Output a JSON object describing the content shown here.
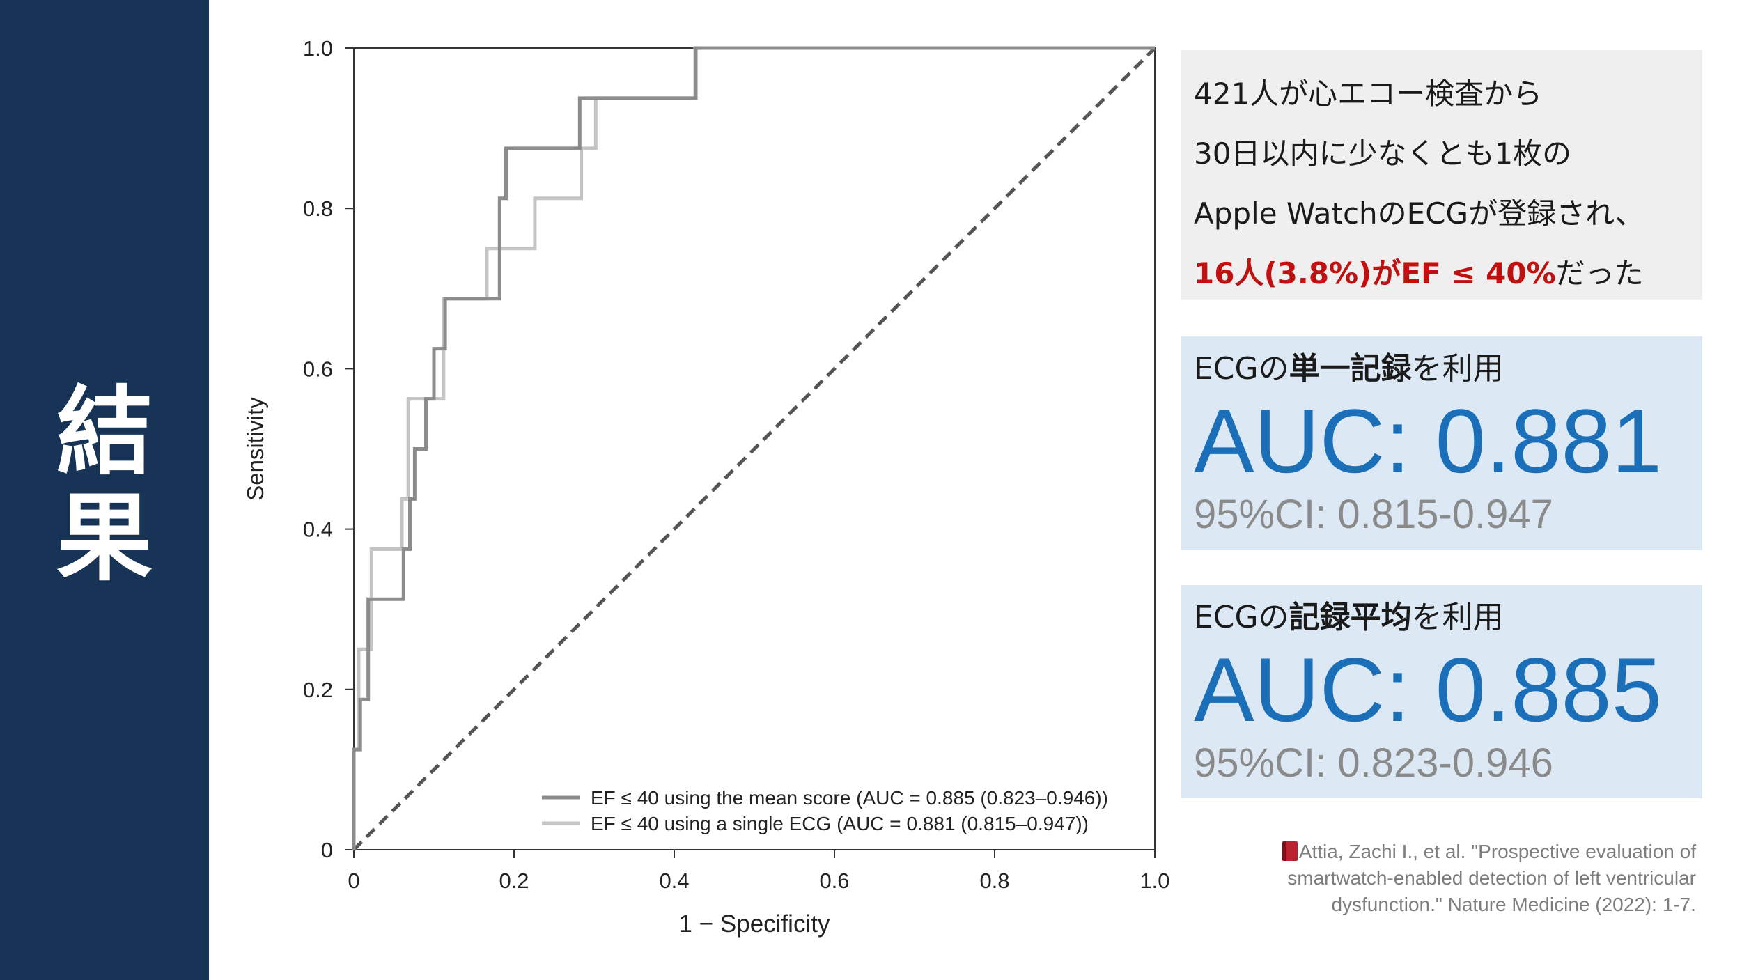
{
  "sidebar": {
    "title_line1": "結",
    "title_line2": "果"
  },
  "summary": {
    "line1": "421人が心エコー検査から",
    "line2": "30日以内に少なくとも1枚の",
    "line3": "Apple WatchのECGが登録され、",
    "line4_highlight": "16人(3.8%)がEF ≤ 40%",
    "line4_rest": "だった"
  },
  "auc_single": {
    "head_prefix": "ECGの",
    "head_bold": "単一記録",
    "head_suffix": "を利用",
    "value": "AUC: 0.881",
    "ci": "95%CI: 0.815-0.947"
  },
  "auc_mean": {
    "head_prefix": "ECGの",
    "head_bold": "記録平均",
    "head_suffix": "を利用",
    "value": "AUC: 0.885",
    "ci": "95%CI: 0.823-0.946"
  },
  "citation": {
    "icon": "book-icon",
    "text": "Attia, Zachi I., et al. \"Prospective evaluation of smartwatch-enabled detection of left ventricular dysfunction.\" Nature Medicine (2022): 1-7."
  },
  "chart_data": {
    "type": "line",
    "title": "",
    "xlabel": "1 − Specificity",
    "ylabel": "Sensitivity",
    "xlim": [
      0,
      1
    ],
    "ylim": [
      0,
      1
    ],
    "xticks": [
      "0",
      "0.2",
      "0.4",
      "0.6",
      "0.8",
      "1.0"
    ],
    "yticks": [
      "0",
      "0.2",
      "0.4",
      "0.6",
      "0.8",
      "1.0"
    ],
    "grid": false,
    "legend_position": "bottom-right",
    "reference_line": {
      "name": "chance",
      "points": [
        [
          0,
          0
        ],
        [
          1,
          1
        ]
      ],
      "style": "dashed",
      "color": "#555555"
    },
    "series": [
      {
        "name": "EF ≤ 40 using the mean score (AUC = 0.885 (0.823–0.946))",
        "color": "#8c8c8c",
        "points": [
          [
            0,
            0
          ],
          [
            0,
            0.125
          ],
          [
            0.008,
            0.125
          ],
          [
            0.008,
            0.1875
          ],
          [
            0.018,
            0.1875
          ],
          [
            0.018,
            0.3125
          ],
          [
            0.062,
            0.3125
          ],
          [
            0.062,
            0.375
          ],
          [
            0.07,
            0.375
          ],
          [
            0.07,
            0.4375
          ],
          [
            0.076,
            0.4375
          ],
          [
            0.076,
            0.5
          ],
          [
            0.09,
            0.5
          ],
          [
            0.09,
            0.5625
          ],
          [
            0.1,
            0.5625
          ],
          [
            0.1,
            0.625
          ],
          [
            0.114,
            0.625
          ],
          [
            0.114,
            0.6875
          ],
          [
            0.182,
            0.6875
          ],
          [
            0.182,
            0.8125
          ],
          [
            0.19,
            0.8125
          ],
          [
            0.19,
            0.875
          ],
          [
            0.282,
            0.875
          ],
          [
            0.282,
            0.9375
          ],
          [
            0.427,
            0.9375
          ],
          [
            0.427,
            1.0
          ],
          [
            1.0,
            1.0
          ]
        ]
      },
      {
        "name": "EF ≤ 40 using a single ECG (AUC = 0.881 (0.815–0.947))",
        "color": "#c4c4c4",
        "points": [
          [
            0,
            0
          ],
          [
            0,
            0.125
          ],
          [
            0.006,
            0.125
          ],
          [
            0.006,
            0.25
          ],
          [
            0.022,
            0.25
          ],
          [
            0.022,
            0.375
          ],
          [
            0.06,
            0.375
          ],
          [
            0.06,
            0.4375
          ],
          [
            0.068,
            0.4375
          ],
          [
            0.068,
            0.5625
          ],
          [
            0.112,
            0.5625
          ],
          [
            0.112,
            0.6875
          ],
          [
            0.166,
            0.6875
          ],
          [
            0.166,
            0.75
          ],
          [
            0.226,
            0.75
          ],
          [
            0.226,
            0.8125
          ],
          [
            0.284,
            0.8125
          ],
          [
            0.284,
            0.875
          ],
          [
            0.302,
            0.875
          ],
          [
            0.302,
            0.9375
          ],
          [
            0.426,
            0.9375
          ],
          [
            0.426,
            1.0
          ],
          [
            1.0,
            1.0
          ]
        ]
      }
    ]
  }
}
